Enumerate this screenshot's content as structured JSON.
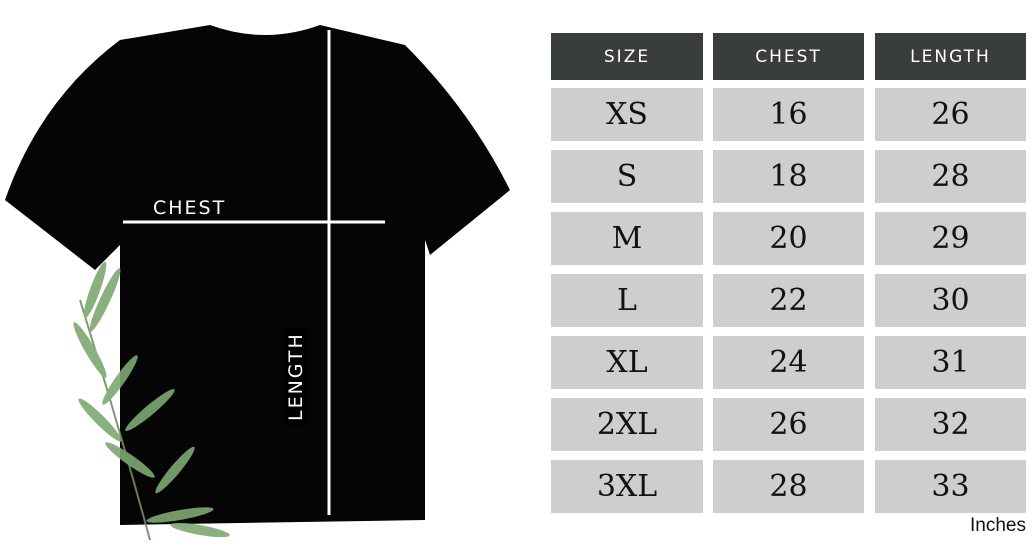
{
  "shirt": {
    "chest_label": "CHEST",
    "length_label": "LENGTH"
  },
  "table": {
    "headers": [
      "SIZE",
      "CHEST",
      "LENGTH"
    ],
    "rows": [
      [
        "XS",
        "16",
        "26"
      ],
      [
        "S",
        "18",
        "28"
      ],
      [
        "M",
        "20",
        "29"
      ],
      [
        "L",
        "22",
        "30"
      ],
      [
        "XL",
        "24",
        "31"
      ],
      [
        "2XL",
        "26",
        "32"
      ],
      [
        "3XL",
        "28",
        "33"
      ]
    ]
  },
  "unit": "Inches",
  "colors": {
    "header_bg": "#3a3d3e",
    "cell_bg": "#cdcecf",
    "shirt": "#000000"
  }
}
